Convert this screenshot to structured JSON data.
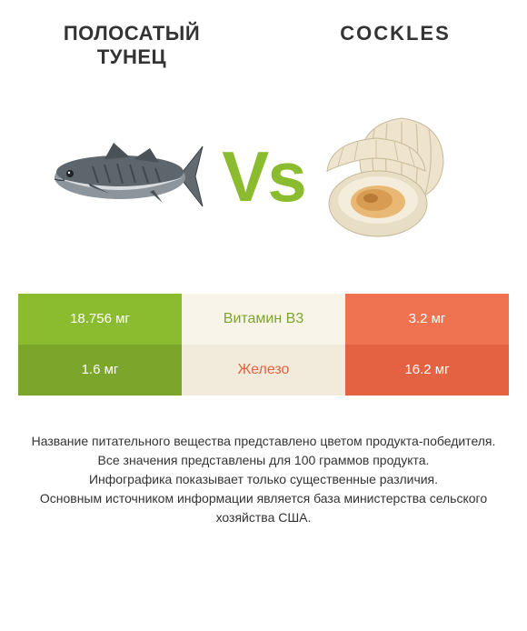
{
  "left_title": "Полосатый тунец",
  "right_title": "Cockles",
  "vs_text": "Vs",
  "colors": {
    "left": "#8bbb2f",
    "left_dark": "#7ca52b",
    "mid_light": "#f9f4ea",
    "mid_dark": "#f2ebdb",
    "right": "#ef7350",
    "right_dark": "#e36241",
    "left_text": "#7ca52b",
    "right_text": "#e36241"
  },
  "rows": [
    {
      "left": "18.756 мг",
      "label": "Витамин B3",
      "right": "3.2 мг",
      "winner": "left"
    },
    {
      "left": "1.6 мг",
      "label": "Железо",
      "right": "16.2 мг",
      "winner": "right"
    }
  ],
  "footnote_lines": [
    "Название питательного вещества представлено цветом продукта-победителя.",
    "Все значения представлены для 100 граммов продукта.",
    "Инфографика показывает только существенные различия.",
    "Основным источником информации является база министерства сельского хозяйства США."
  ]
}
